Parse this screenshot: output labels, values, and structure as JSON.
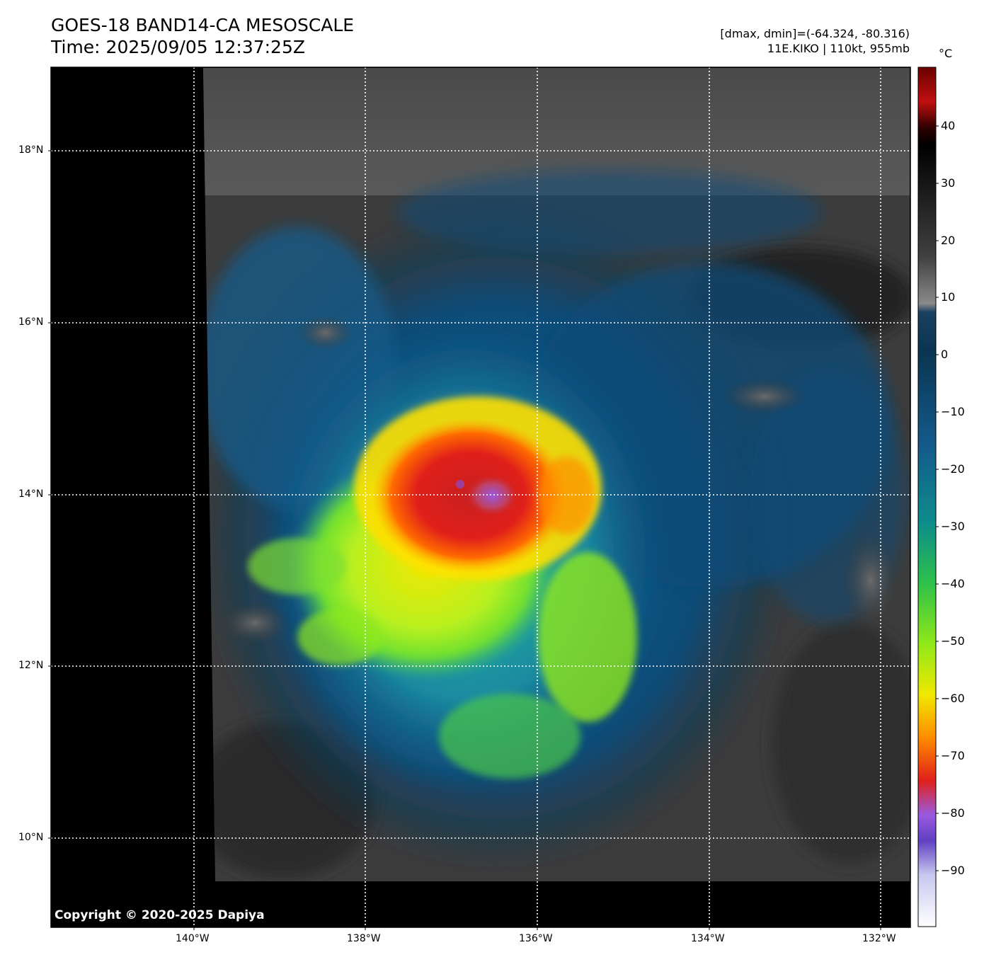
{
  "header": {
    "title": "GOES-18 BAND14-CA MESOSCALE",
    "time": "Time: 2025/09/05 12:37:25Z",
    "range": "[dmax, dmin]=(-64.324, -80.316)",
    "storm": "11E.KIKO | 110kt, 955mb"
  },
  "map": {
    "lat_labels": [
      "18°N",
      "16°N",
      "14°N",
      "12°N",
      "10°N"
    ],
    "lon_labels": [
      "140°W",
      "138°W",
      "136°W",
      "134°W",
      "132°W"
    ],
    "copyright": "Copyright © 2020-2025 Dapiya"
  },
  "colorbar": {
    "unit": "°C",
    "tick_labels": [
      "40",
      "30",
      "20",
      "10",
      "0",
      "−10",
      "−20",
      "−30",
      "−40",
      "−50",
      "−60",
      "−70",
      "−80",
      "−90"
    ],
    "colors": {
      "warm_top": "#6a0000",
      "black": "#000000",
      "gray": "#8a8a8a",
      "dark_blue": "#0a3550",
      "blue": "#145a8c",
      "teal": "#0e8c8c",
      "green": "#2ec04a",
      "lime": "#8ee81a",
      "yellow": "#f0e800",
      "orange": "#ff8c00",
      "red": "#e0201a",
      "purple": "#9a5ae0",
      "lavender": "#d8d8f8",
      "white": "#ffffff"
    }
  }
}
